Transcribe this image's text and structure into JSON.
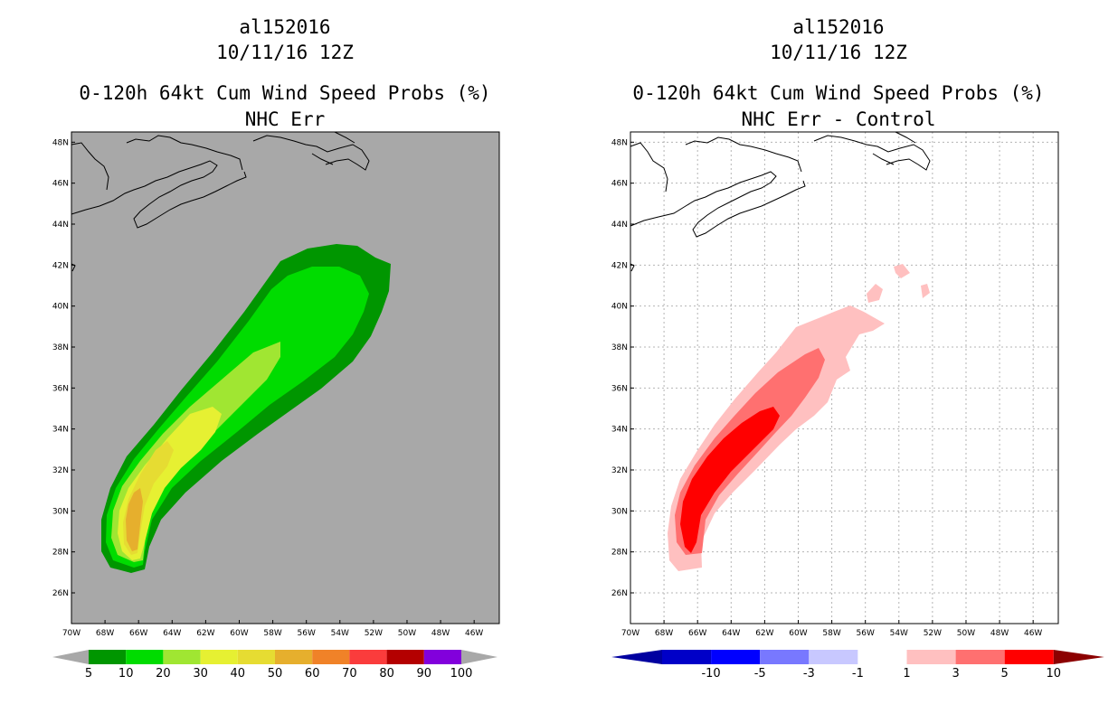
{
  "left_panel": {
    "title_lines": [
      "al152016",
      "10/11/16 12Z",
      "0-120h 64kt Cum Wind Speed Probs (%)",
      "NHC Err"
    ],
    "legend": {
      "labels": [
        "5",
        "10",
        "20",
        "30",
        "40",
        "50",
        "60",
        "70",
        "80",
        "90",
        "100"
      ],
      "colors": [
        "#009600",
        "#00dc00",
        "#a0e632",
        "#e6f032",
        "#e6dc32",
        "#e6af2d",
        "#f08228",
        "#fa3c3c",
        "#b40000",
        "#8200dc"
      ],
      "end_color": "#a8a8a8"
    },
    "background": "#a8a8a8"
  },
  "right_panel": {
    "title_lines": [
      "al152016",
      "10/11/16 12Z",
      "0-120h 64kt Cum Wind Speed Probs (%)",
      "NHC Err - Control"
    ],
    "legend": {
      "labels": [
        "-10",
        "-5",
        "-3",
        "-1",
        "1",
        "3",
        "5",
        "10"
      ],
      "colors": [
        "#0000c8",
        "#0000ff",
        "#7878ff",
        "#c8c8ff",
        "#ffffff",
        "#ffc0c0",
        "#ff7070",
        "#ff0000"
      ],
      "end_low": "#0000a0",
      "end_high": "#8c0000"
    },
    "background": "#ffffff"
  },
  "map": {
    "lon_labels": [
      "70W",
      "68W",
      "66W",
      "64W",
      "62W",
      "60W",
      "58W",
      "56W",
      "54W",
      "52W",
      "50W",
      "48W",
      "46W"
    ],
    "lat_labels": [
      "26N",
      "28N",
      "30N",
      "32N",
      "34N",
      "36N",
      "38N",
      "40N",
      "42N",
      "44N",
      "46N",
      "48N"
    ],
    "lon_range": [
      -70,
      -44.5
    ],
    "lat_range": [
      24.5,
      48.5
    ]
  }
}
